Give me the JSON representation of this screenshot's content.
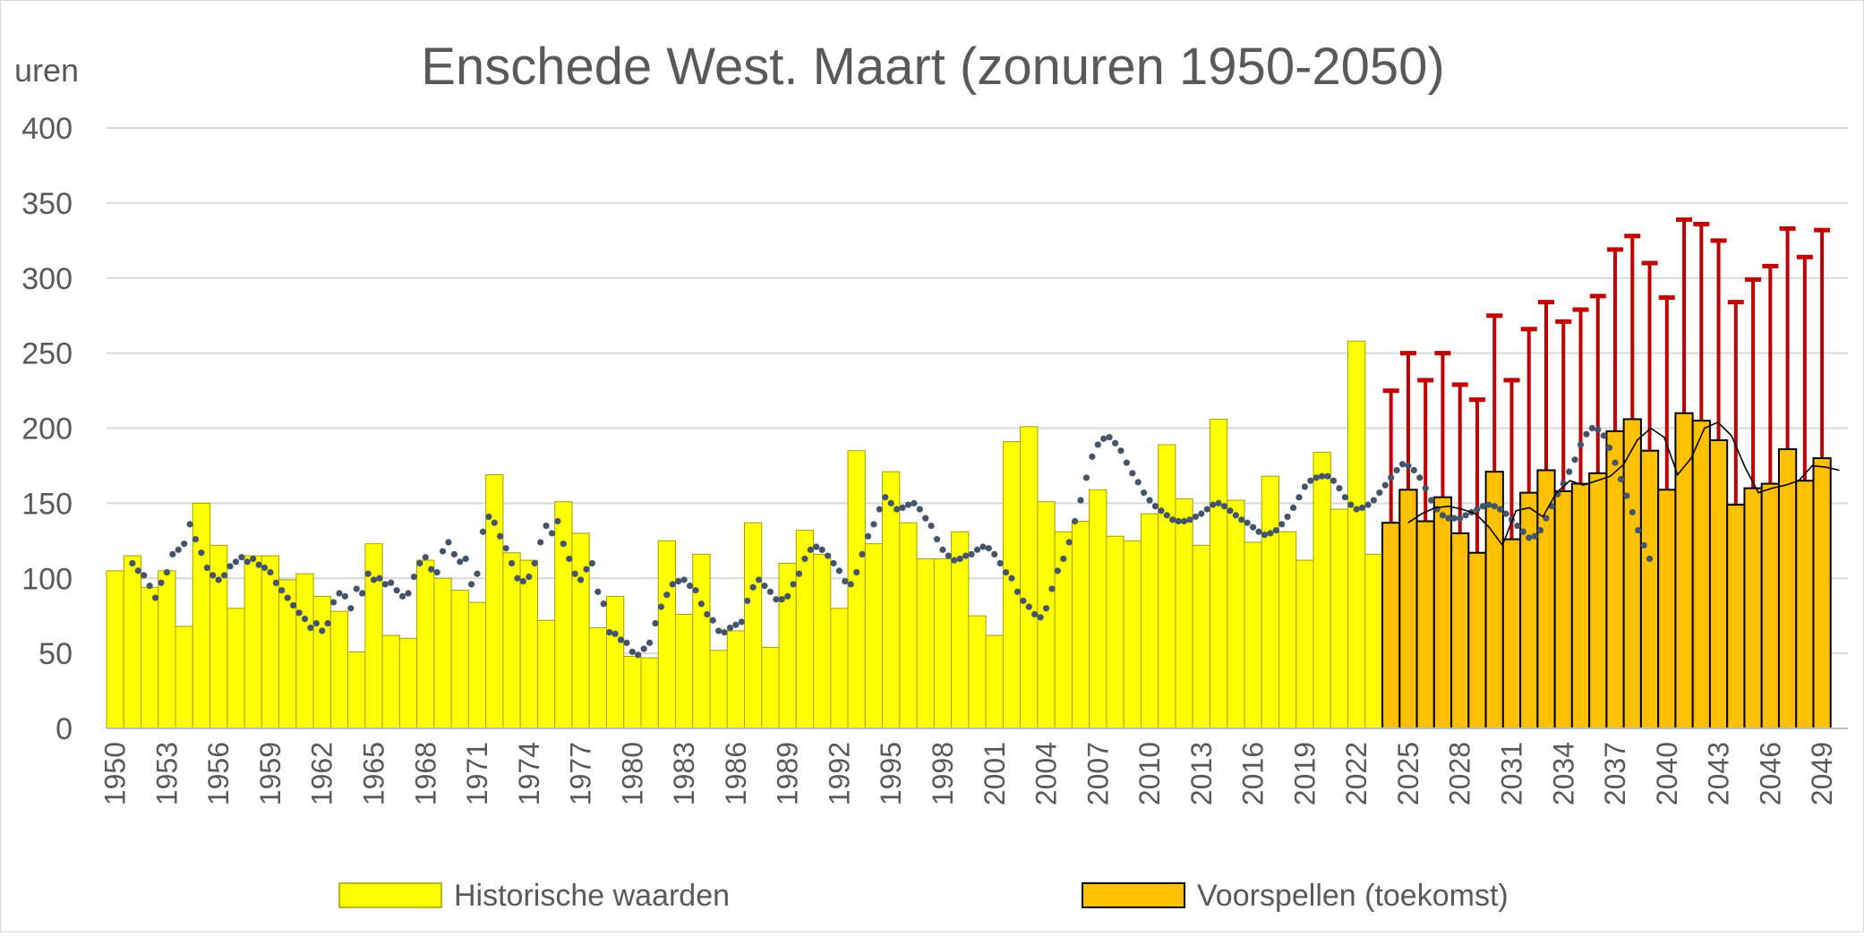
{
  "chart_data": {
    "type": "bar",
    "title": "Enschede West. Maart (zonuren 1950-2050)",
    "ylabel": "uren",
    "xlabel": "",
    "ylim": [
      0,
      400
    ],
    "yticks": [
      "0",
      "50",
      "100",
      "150",
      "200",
      "250",
      "300",
      "350",
      "400"
    ],
    "xtick_labels": [
      "1950",
      "1953",
      "1956",
      "1959",
      "1962",
      "1965",
      "1968",
      "1971",
      "1974",
      "1977",
      "1980",
      "1983",
      "1986",
      "1989",
      "1992",
      "1995",
      "1998",
      "2001",
      "2004",
      "2007",
      "2010",
      "2013",
      "2016",
      "2019",
      "2022",
      "2025",
      "2028",
      "2031",
      "2034",
      "2037",
      "2040",
      "2043",
      "2046",
      "2049"
    ],
    "grid": true,
    "legend": {
      "placement": "bottom",
      "entries": [
        "Historische waarden",
        "Voorspellen (toekomst)"
      ]
    },
    "colors": {
      "historical_fill": "#ffff00",
      "historical_border": "#a0a000",
      "forecast_fill": "#ffc000",
      "forecast_border": "#000000",
      "error_bar": "#c00000",
      "moving_average_dots": "#44546a",
      "forecast_line": "#000000",
      "grid": "#d9d9d9"
    },
    "series": [
      {
        "name": "Historische waarden",
        "start_year": 1950,
        "values": [
          105,
          115,
          94,
          105,
          68,
          150,
          122,
          80,
          115,
          115,
          99,
          103,
          88,
          78,
          51,
          123,
          62,
          60,
          112,
          100,
          92,
          84,
          169,
          117,
          112,
          72,
          151,
          130,
          67,
          88,
          48,
          47,
          125,
          76,
          116,
          52,
          65,
          137,
          54,
          110,
          132,
          116,
          80,
          185,
          123,
          171,
          137,
          113,
          113,
          131,
          75,
          62,
          191,
          201,
          151,
          131,
          138,
          159,
          128,
          125,
          143,
          189,
          153,
          122,
          206,
          152,
          124,
          168,
          131,
          112,
          184,
          146,
          258,
          116,
          112
        ]
      },
      {
        "name": "Voorspellen (toekomst)",
        "start_year": 2024,
        "values": [
          137,
          159,
          138,
          154,
          130,
          117,
          171,
          126,
          157,
          172,
          158,
          163,
          170,
          198,
          206,
          185,
          159,
          210,
          205,
          192,
          149,
          160,
          163,
          186,
          165,
          180
        ],
        "upper": [
          225,
          250,
          232,
          250,
          229,
          219,
          275,
          232,
          266,
          284,
          271,
          279,
          288,
          319,
          328,
          310,
          287,
          339,
          336,
          325,
          284,
          299,
          308,
          333,
          314,
          332
        ]
      },
      {
        "name": "Moving average (historisch)",
        "style": "dotted",
        "start_year": 1951,
        "values": [
          110,
          105,
          102,
          95,
          87,
          97,
          104,
          116,
          119,
          123,
          136,
          126,
          117,
          107,
          102,
          99,
          102,
          108,
          111,
          114,
          111,
          113,
          109,
          107,
          104,
          97,
          92,
          87,
          82,
          77,
          73,
          67,
          70,
          65,
          70,
          84,
          90,
          88,
          80,
          93,
          90,
          103,
          99,
          100,
          96,
          97,
          92,
          88,
          90,
          101,
          110,
          114,
          106,
          104,
          118,
          124,
          116,
          111,
          113,
          96,
          103,
          131,
          141,
          137,
          128,
          120,
          110,
          100,
          98,
          101,
          110,
          124,
          135,
          130,
          138,
          123,
          113,
          103,
          99,
          106,
          110,
          91,
          83,
          64,
          63,
          59,
          57,
          51,
          49,
          53,
          57,
          70,
          81,
          89,
          96,
          98,
          99,
          95,
          92,
          83,
          76,
          72,
          65,
          64,
          67,
          69,
          71,
          85,
          94,
          99,
          95,
          91,
          86,
          86,
          88,
          96,
          103,
          113,
          119,
          121,
          119,
          115,
          110,
          105,
          98,
          96,
          104,
          116,
          128,
          136,
          146,
          154,
          150,
          146,
          147,
          149,
          150,
          146,
          140,
          135,
          126,
          119,
          115,
          112,
          113,
          115,
          116,
          119,
          121,
          120,
          116,
          110,
          104,
          100,
          91,
          85,
          81,
          76,
          74,
          80,
          93,
          105,
          113,
          124,
          138,
          152,
          167,
          181,
          189,
          193,
          194,
          190,
          185,
          177,
          170,
          164,
          157,
          152,
          148,
          145,
          142,
          139,
          138,
          138,
          139,
          141,
          143,
          146,
          149,
          150,
          148,
          145,
          142,
          139,
          137,
          134,
          131,
          129,
          130,
          132,
          136,
          141,
          147,
          154,
          161,
          165,
          167,
          168,
          168,
          165,
          160,
          154,
          149,
          146,
          147,
          149,
          152,
          157,
          162,
          167,
          172,
          176,
          175,
          172,
          167,
          160,
          152,
          146,
          142,
          140,
          140,
          140,
          142,
          144,
          146,
          148,
          149,
          148,
          146,
          143,
          139,
          135,
          131,
          127,
          128,
          132,
          140,
          148,
          156,
          163,
          171,
          179,
          189,
          196,
          200,
          199,
          195,
          187,
          177,
          166,
          155,
          144,
          132,
          122,
          113
        ]
      },
      {
        "name": "Moving average (toekomst)",
        "style": "line",
        "start_year": 2025,
        "values": [
          137,
          143,
          147,
          148,
          146,
          143,
          134,
          122,
          145,
          147,
          141,
          157,
          165,
          162,
          165,
          168,
          176,
          192,
          200,
          194,
          169,
          180,
          200,
          204,
          195,
          174,
          157,
          160,
          162,
          165,
          175,
          174,
          172
        ]
      }
    ]
  }
}
